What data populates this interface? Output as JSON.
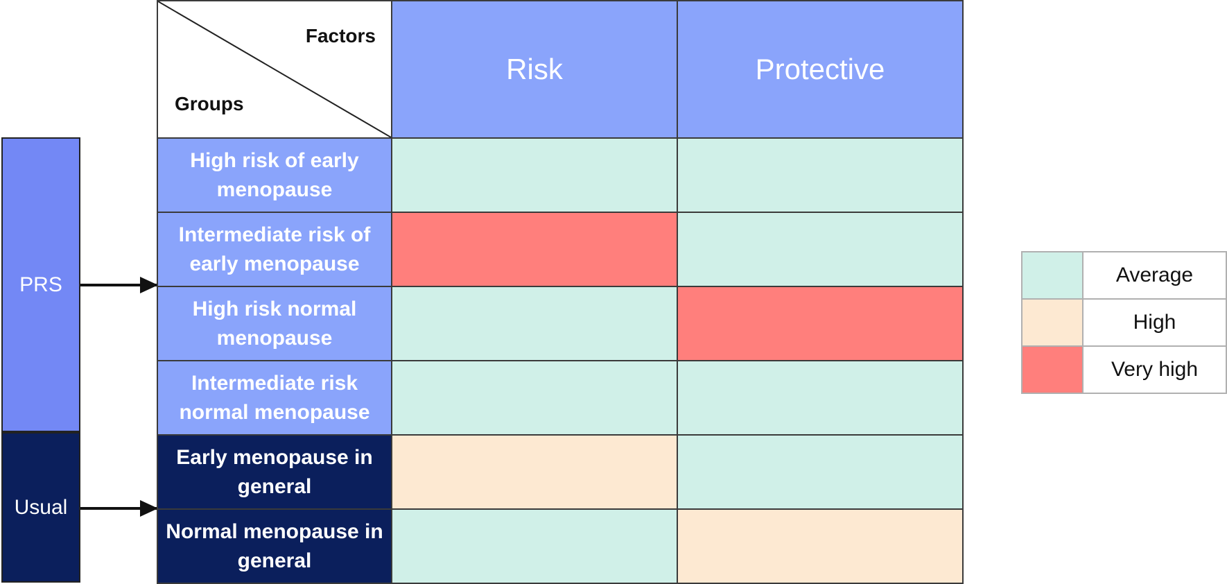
{
  "colors": {
    "header": "#8aa4fb",
    "group_prs": "#8aa4fb",
    "group_usual": "#0b1f5c",
    "side_prs": "#7388f5",
    "side_usual": "#0b1f5c",
    "average": "#d0f0e8",
    "high": "#fde9d2",
    "very_high": "#ff7f7c"
  },
  "corner": {
    "factors_label": "Factors",
    "groups_label": "Groups"
  },
  "columns": [
    {
      "label": "Risk"
    },
    {
      "label": "Protective"
    }
  ],
  "sidebar": [
    {
      "label": "PRS"
    },
    {
      "label": "Usual"
    }
  ],
  "rows": [
    {
      "label": "High risk of early menopause",
      "source": "PRS",
      "risk": "Average",
      "protective": "Average"
    },
    {
      "label": "Intermediate risk of early menopause",
      "source": "PRS",
      "risk": "Very high",
      "protective": "Average"
    },
    {
      "label": "High risk normal menopause",
      "source": "PRS",
      "risk": "Average",
      "protective": "Very high"
    },
    {
      "label": "Intermediate risk normal menopause",
      "source": "PRS",
      "risk": "Average",
      "protective": "Average"
    },
    {
      "label": "Early menopause in general",
      "source": "Usual",
      "risk": "High",
      "protective": "Average"
    },
    {
      "label": "Normal menopause in general",
      "source": "Usual",
      "risk": "Average",
      "protective": "High"
    }
  ],
  "legend": [
    {
      "label": "Average"
    },
    {
      "label": "High"
    },
    {
      "label": "Very high"
    }
  ]
}
